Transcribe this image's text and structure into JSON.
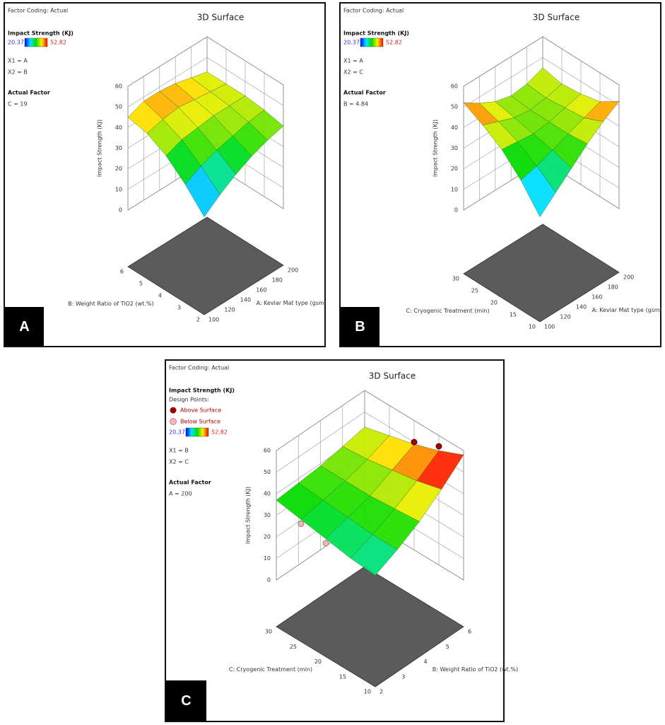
{
  "panels": [
    {
      "type": "surface3d",
      "label": "A",
      "factor_coding": "Factor Coding: Actual",
      "title": "3D Surface",
      "response": "Impact Strength (KJ)",
      "color_range": [
        20.37,
        52.82
      ],
      "x1": "X1 = A",
      "x2": "X2 = B",
      "actual_factor_title": "Actual Factor",
      "actual_factor": "C = 19",
      "zlabel": "Impact Strength (KJ)",
      "zlim": [
        0,
        60
      ],
      "zticks": [
        0,
        10,
        20,
        30,
        40,
        50,
        60
      ],
      "xlabel": "A: Kevlar Mat type (gsm)",
      "xlim": [
        100,
        200
      ],
      "xticks": [
        100,
        120,
        140,
        160,
        180,
        200
      ],
      "ylabel": "B: Weight Ratio of TiO2 (wt.%)",
      "ylim": [
        2,
        6
      ],
      "yticks": [
        2,
        3,
        4,
        5,
        6
      ],
      "z": [
        [
          20,
          26,
          31,
          35,
          38,
          40
        ],
        [
          30,
          34,
          37,
          39,
          41,
          42
        ],
        [
          38,
          41,
          42,
          43,
          43,
          43
        ],
        [
          43,
          45,
          46,
          45,
          44,
          43
        ],
        [
          45,
          48,
          48,
          47,
          45,
          43
        ]
      ]
    },
    {
      "type": "surface3d",
      "label": "B",
      "factor_coding": "Factor Coding: Actual",
      "title": "3D Surface",
      "response": "Impact Strength (KJ)",
      "color_range": [
        20.37,
        52.82
      ],
      "x1": "X1 = A",
      "x2": "X2 = C",
      "actual_factor_title": "Actual Factor",
      "actual_factor": "B = 4.84",
      "zlabel": "Impact Strength (KJ)",
      "zlim": [
        0,
        60
      ],
      "zticks": [
        0,
        10,
        20,
        30,
        40,
        50,
        60
      ],
      "xlabel": "A: Kevlar Mat type (gsm)",
      "xlim": [
        100,
        200
      ],
      "xticks": [
        100,
        120,
        140,
        160,
        180,
        200
      ],
      "ylabel": "C: Cryogenic Treatment (min)",
      "ylim": [
        10,
        30
      ],
      "yticks": [
        10,
        15,
        20,
        25,
        30
      ],
      "z": [
        [
          20,
          27,
          34,
          41,
          47,
          52
        ],
        [
          32,
          34,
          37,
          40,
          43,
          46
        ],
        [
          41,
          40,
          39,
          40,
          42,
          44
        ],
        [
          47,
          44,
          41,
          40,
          41,
          43
        ],
        [
          52,
          47,
          43,
          41,
          42,
          45
        ]
      ]
    },
    {
      "type": "surface3d",
      "label": "C",
      "factor_coding": "Factor Coding: Actual",
      "title": "3D Surface",
      "response": "Impact Strength (KJ)",
      "design_points_title": "Design Points:",
      "above_label": "Above Surface",
      "below_label": "Below Surface",
      "color_range": [
        20.37,
        52.82
      ],
      "x1": "X1 = B",
      "x2": "X2 = C",
      "actual_factor_title": "Actual Factor",
      "actual_factor": "A = 200",
      "zlabel": "Impact Strength (KJ)",
      "zlim": [
        0,
        60
      ],
      "zticks": [
        0,
        10,
        20,
        30,
        40,
        50,
        60
      ],
      "xlabel": "B: Weight Ratio of TiO2 (wt.%)",
      "xlim": [
        2,
        6
      ],
      "xticks": [
        2,
        3,
        4,
        5,
        6
      ],
      "ylabel": "C: Cryogenic Treatment (min)",
      "ylim": [
        10,
        30
      ],
      "yticks": [
        10,
        15,
        20,
        25,
        30
      ],
      "z": [
        [
          30,
          35,
          41,
          49,
          58
        ],
        [
          31,
          35,
          40,
          46,
          53
        ],
        [
          33,
          36,
          39,
          44,
          49
        ],
        [
          35,
          37,
          39,
          42,
          46
        ],
        [
          37,
          38,
          39,
          41,
          43
        ]
      ],
      "points_above": [
        {
          "x": 6,
          "y": 20,
          "z": 50
        },
        {
          "x": 6,
          "y": 15,
          "z": 55
        }
      ],
      "points_below": [
        {
          "x": 2,
          "y": 20,
          "z": 31
        },
        {
          "x": 2,
          "y": 25,
          "z": 33
        }
      ]
    }
  ]
}
